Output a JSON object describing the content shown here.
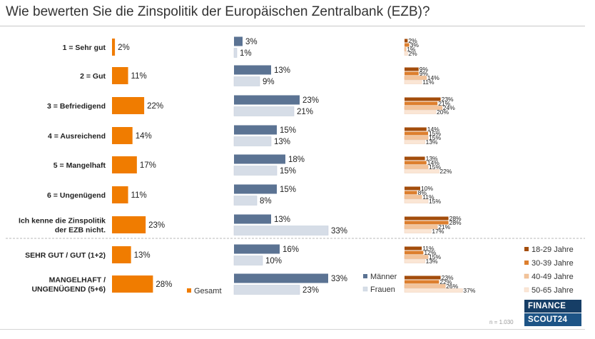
{
  "title": "Wie bewerten Sie die Zinspolitik der Europäischen Zentralbank (EZB)?",
  "sample_note": "n = 1.030",
  "logo": {
    "line1": "FINANCE",
    "line2": "SCOUT24"
  },
  "colors": {
    "gesamt": "#f07c00",
    "maenner": "#5b7393",
    "frauen": "#d6dde7",
    "age_18_29": "#a34d0c",
    "age_30_39": "#dd7f2e",
    "age_40_49": "#f3c39a",
    "age_50_65": "#fbe6d5"
  },
  "chart_data": {
    "type": "bar",
    "orientation": "horizontal",
    "unit": "%",
    "categories": [
      "1 = Sehr gut",
      "2 = Gut",
      "3 = Befriedigend",
      "4 = Ausreichend",
      "5 = Mangelhaft",
      "6 = Ungenügend",
      "Ich kenne die Zinspolitik der EZB nicht.",
      "SEHR GUT / GUT (1+2)",
      "MANGELHAFT / UNGENÜGEND (5+6)"
    ],
    "category_lines": [
      [
        "1 = Sehr gut"
      ],
      [
        "2 = Gut"
      ],
      [
        "3 = Befriedigend"
      ],
      [
        "4 = Ausreichend"
      ],
      [
        "5 = Mangelhaft"
      ],
      [
        "6 = Ungenügend"
      ],
      [
        "Ich kenne die Zinspolitik",
        "der EZB nicht."
      ],
      [
        "SEHR GUT / GUT (1+2)"
      ],
      [
        "MANGELHAFT /",
        "UNGENÜGEND (5+6)"
      ]
    ],
    "panels": [
      {
        "series": [
          {
            "name": "Gesamt",
            "color_key": "gesamt",
            "values": [
              2,
              11,
              22,
              14,
              17,
              11,
              23,
              13,
              28
            ]
          }
        ]
      },
      {
        "series": [
          {
            "name": "Männer",
            "color_key": "maenner",
            "values": [
              3,
              13,
              23,
              15,
              18,
              15,
              13,
              16,
              33
            ]
          },
          {
            "name": "Frauen",
            "color_key": "frauen",
            "values": [
              1,
              9,
              21,
              13,
              15,
              8,
              33,
              10,
              23
            ]
          }
        ]
      },
      {
        "series": [
          {
            "name": "18-29 Jahre",
            "color_key": "age_18_29",
            "values": [
              2,
              9,
              23,
              14,
              13,
              10,
              28,
              11,
              23
            ]
          },
          {
            "name": "30-39 Jahre",
            "color_key": "age_30_39",
            "values": [
              3,
              9,
              21,
              15,
              14,
              8,
              28,
              12,
              22
            ]
          },
          {
            "name": "40-49 Jahre",
            "color_key": "age_40_49",
            "values": [
              1,
              14,
              24,
              15,
              15,
              11,
              21,
              15,
              26
            ]
          },
          {
            "name": "50-65 Jahre",
            "color_key": "age_50_65",
            "values": [
              2,
              11,
              20,
              13,
              22,
              15,
              17,
              13,
              37
            ]
          }
        ]
      }
    ]
  }
}
